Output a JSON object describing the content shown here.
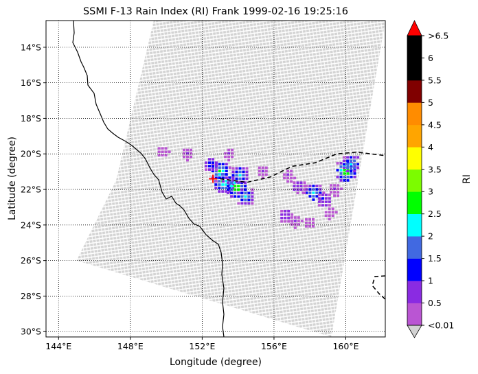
{
  "title": "SSMI F-13 Rain Index (RI) Frank 1999-02-16 19:25:16",
  "xlabel": "Longitude (degree)",
  "ylabel": "Latitude (degree)",
  "colorbar_label": "RI",
  "chart_data": {
    "type": "heatmap",
    "title": "SSMI F-13 Rain Index (RI) Frank 1999-02-16 19:25:16",
    "xlabel": "Longitude (degree)",
    "ylabel": "Latitude (degree)",
    "xlim": [
      143.3,
      162.2
    ],
    "ylim": [
      -30.3,
      -12.5
    ],
    "x_ticks": [
      144,
      148,
      152,
      156,
      160
    ],
    "x_tick_labels": [
      "144°E",
      "148°E",
      "152°E",
      "156°E",
      "160°E"
    ],
    "y_ticks": [
      -14,
      -16,
      -18,
      -20,
      -22,
      -24,
      -26,
      -28,
      -30
    ],
    "y_tick_labels": [
      "14°S",
      "16°S",
      "18°S",
      "20°S",
      "22°S",
      "24°S",
      "26°S",
      "28°S",
      "30°S"
    ],
    "grid": true,
    "swath_color": "#d3d3d3",
    "swath_corners_lonlat": [
      [
        149.3,
        -12.5
      ],
      [
        162.2,
        -12.5
      ],
      [
        159.2,
        -30.3
      ],
      [
        145.0,
        -26.0
      ],
      [
        147.2,
        -21.5
      ]
    ],
    "storm_center": {
      "lon": 152.6,
      "lat": -21.4,
      "marker_color": "#ff0000"
    },
    "track_style": "dashed",
    "track_lonlat": [
      [
        153.0,
        -21.4
      ],
      [
        154.5,
        -21.6
      ],
      [
        155.8,
        -21.3
      ],
      [
        157.0,
        -20.7
      ],
      [
        158.3,
        -20.5
      ],
      [
        159.5,
        -20.0
      ],
      [
        160.6,
        -19.9
      ],
      [
        162.2,
        -20.1
      ]
    ],
    "rain_cells": [
      {
        "lon": 153.2,
        "lat": -21.6,
        "ri": 3.0
      },
      {
        "lon": 153.9,
        "lat": -21.9,
        "ri": 3.2
      },
      {
        "lon": 153.0,
        "lat": -21.0,
        "ri": 2.7
      },
      {
        "lon": 154.1,
        "lat": -21.2,
        "ri": 2.3
      },
      {
        "lon": 152.5,
        "lat": -20.6,
        "ri": 1.4
      },
      {
        "lon": 154.4,
        "lat": -22.4,
        "ri": 2.3
      },
      {
        "lon": 155.4,
        "lat": -21.0,
        "ri": 0.6
      },
      {
        "lon": 151.2,
        "lat": -20.0,
        "ri": 0.6
      },
      {
        "lon": 149.8,
        "lat": -19.9,
        "ri": 0.5
      },
      {
        "lon": 153.5,
        "lat": -20.0,
        "ri": 0.6
      },
      {
        "lon": 156.8,
        "lat": -21.2,
        "ri": 0.7
      },
      {
        "lon": 160.0,
        "lat": -21.0,
        "ri": 3.2
      },
      {
        "lon": 160.3,
        "lat": -20.6,
        "ri": 2.5
      },
      {
        "lon": 158.2,
        "lat": -22.2,
        "ri": 2.4
      },
      {
        "lon": 158.8,
        "lat": -22.6,
        "ri": 1.3
      },
      {
        "lon": 157.4,
        "lat": -21.9,
        "ri": 1.2
      },
      {
        "lon": 159.4,
        "lat": -22.0,
        "ri": 0.7
      },
      {
        "lon": 159.1,
        "lat": -23.3,
        "ri": 0.5
      },
      {
        "lon": 156.7,
        "lat": -23.5,
        "ri": 1.2
      },
      {
        "lon": 157.2,
        "lat": -23.8,
        "ri": 0.6
      },
      {
        "lon": 158.0,
        "lat": -23.9,
        "ri": 0.5
      }
    ],
    "colorbar": {
      "label": "RI",
      "boundaries": [
        0.01,
        0.5,
        1,
        1.5,
        2,
        2.5,
        3,
        3.5,
        4,
        4.5,
        5,
        5.5,
        6,
        6.5
      ],
      "tick_labels": [
        "<0.01",
        "0.5",
        "1",
        "1.5",
        "2",
        "2.5",
        "3",
        "3.5",
        "4",
        "4.5",
        "5",
        "5.5",
        "6",
        ">6.5"
      ],
      "colors": [
        "#ba55d3",
        "#8a2be2",
        "#0000ff",
        "#4169e1",
        "#00ffff",
        "#00ff00",
        "#7cfc00",
        "#ffff00",
        "#ffa500",
        "#ff8c00",
        "#800000",
        "#000000",
        "#000000"
      ],
      "under_color": "#d3d3d3",
      "over_color": "#ff0000"
    }
  }
}
